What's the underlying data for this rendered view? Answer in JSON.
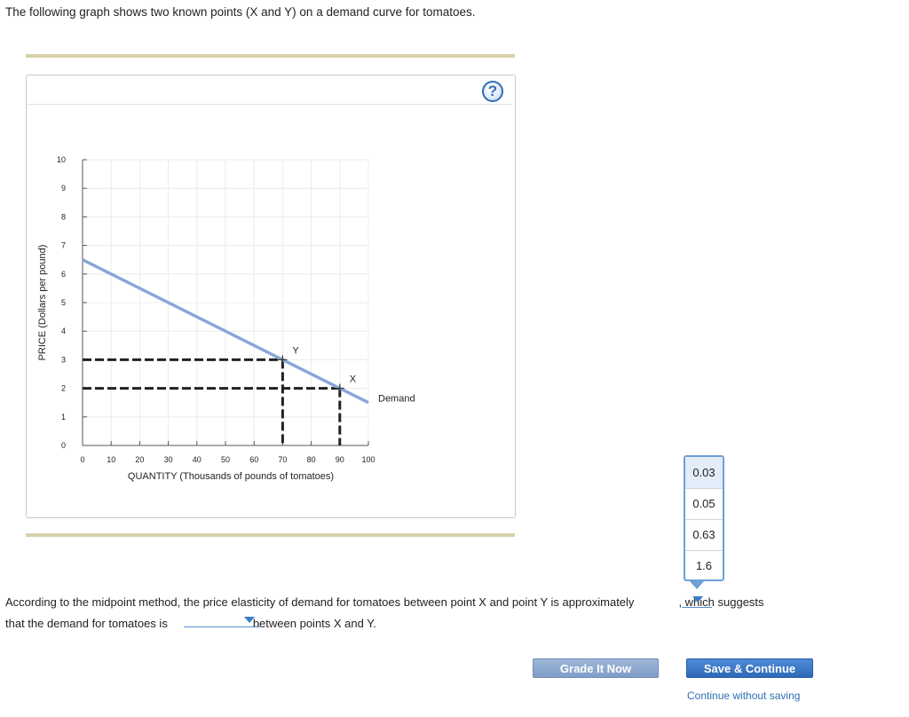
{
  "intro_text": "The following graph shows two known points (X and Y) on a demand curve for tomatoes.",
  "help_label": "?",
  "chart_data": {
    "type": "line",
    "xlabel": "QUANTITY (Thousands of pounds of tomatoes)",
    "ylabel": "PRICE (Dollars per pound)",
    "xlim": [
      0,
      100
    ],
    "ylim": [
      0,
      10
    ],
    "x_ticks": [
      "0",
      "10",
      "20",
      "30",
      "40",
      "50",
      "60",
      "70",
      "80",
      "90",
      "100"
    ],
    "y_ticks": [
      "0",
      "1",
      "2",
      "3",
      "4",
      "5",
      "6",
      "7",
      "8",
      "9",
      "10"
    ],
    "grid": true,
    "series": [
      {
        "name": "Demand",
        "x": [
          0,
          100
        ],
        "y": [
          6.5,
          1.5
        ],
        "color": "#88a8d4"
      }
    ],
    "points": [
      {
        "label": "Y",
        "x": 70,
        "y": 3
      },
      {
        "label": "X",
        "x": 90,
        "y": 2
      }
    ]
  },
  "question": {
    "text1": "According to the midpoint method, the price elasticity of demand for tomatoes between point X and point Y is approximately",
    "text2": ", which suggests",
    "text3": "that the demand for tomatoes is",
    "text4": "between points X and Y."
  },
  "dropdown_options": [
    "0.03",
    "0.05",
    "0.63",
    "1.6"
  ],
  "buttons": {
    "grade": "Grade It Now",
    "save": "Save & Continue",
    "continue": "Continue without saving"
  }
}
